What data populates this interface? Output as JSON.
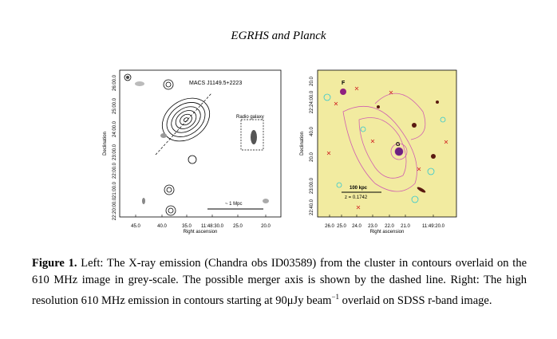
{
  "header": {
    "title": "EGRHS and Planck"
  },
  "figure": {
    "left_panel": {
      "title": "MACS J1149.5+2223",
      "annotation": "Radio galaxy",
      "scale_label": "~ 1 Mpc",
      "y_label": "Declination",
      "x_label": "Right ascension",
      "y_ticks": [
        "26:00.0",
        "25:00.0",
        "24:00.0",
        "23:00.0",
        "22:00.0",
        "21:00.0",
        "22:20:00.0"
      ],
      "x_ticks": [
        "45.0",
        "40.0",
        "35.0",
        "11:48:30.0",
        "25.0",
        "20.0"
      ]
    },
    "right_panel": {
      "labels": [
        "F",
        "G"
      ],
      "scale_label": "100 kpc",
      "redshift_label": "z = 0.1742",
      "y_label": "Declination",
      "x_label": "Right ascension",
      "y_ticks": [
        "20.0",
        "22:24:00.0",
        "40.0",
        "20.0",
        "23:00.0",
        "22:40.0"
      ],
      "x_ticks": [
        "26.0",
        "25.0",
        "24.0",
        "23.0",
        "22.0",
        "21.0",
        "11:49:20.0"
      ]
    },
    "caption": {
      "label": "Figure 1.",
      "text": "Left: The X-ray emission (Chandra obs ID03589) from the cluster in contours overlaid on the 610 MHz image in grey-scale. The possible merger axis is shown by the dashed line. Right: The high resolution 610 MHz emission in contours starting at 90μJy beam",
      "superscript": "−1",
      "text_end": " overlaid on SDSS r-band image."
    }
  }
}
